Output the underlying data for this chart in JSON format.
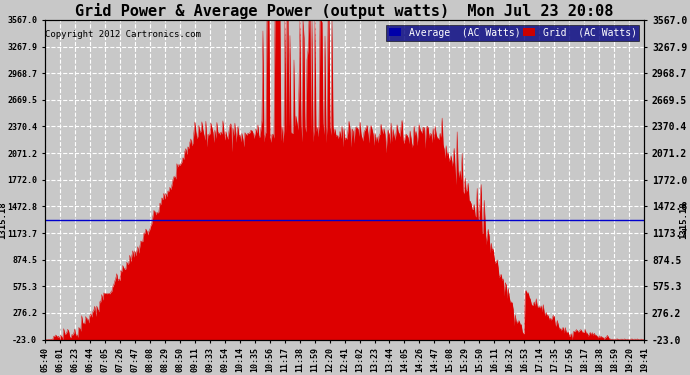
{
  "title": "Grid Power & Average Power (output watts)  Mon Jul 23 20:08",
  "copyright": "Copyright 2012 Cartronics.com",
  "average_value": 1315.18,
  "y_min": -23.0,
  "y_max": 3567.0,
  "yticks": [
    3567.0,
    3267.9,
    2968.7,
    2669.5,
    2370.4,
    2071.2,
    1772.0,
    1472.8,
    1173.7,
    874.5,
    575.3,
    276.2,
    -23.0
  ],
  "x_labels": [
    "05:40",
    "06:01",
    "06:23",
    "06:44",
    "07:05",
    "07:26",
    "07:47",
    "08:08",
    "08:29",
    "08:50",
    "09:11",
    "09:33",
    "09:54",
    "10:14",
    "10:35",
    "10:56",
    "11:17",
    "11:38",
    "11:59",
    "12:20",
    "12:41",
    "13:02",
    "13:23",
    "13:44",
    "14:05",
    "14:26",
    "14:47",
    "15:08",
    "15:29",
    "15:50",
    "16:11",
    "16:32",
    "16:53",
    "17:14",
    "17:35",
    "17:56",
    "18:17",
    "18:38",
    "18:59",
    "19:20",
    "19:41"
  ],
  "bg_color": "#c8c8c8",
  "plot_bg_color": "#d8d8d8",
  "grid_color": "#ffffff",
  "area_color": "#dd0000",
  "avg_line_color": "#0000cc",
  "title_fontsize": 11,
  "legend_avg_color": "#0000aa",
  "legend_grid_color": "#cc0000"
}
